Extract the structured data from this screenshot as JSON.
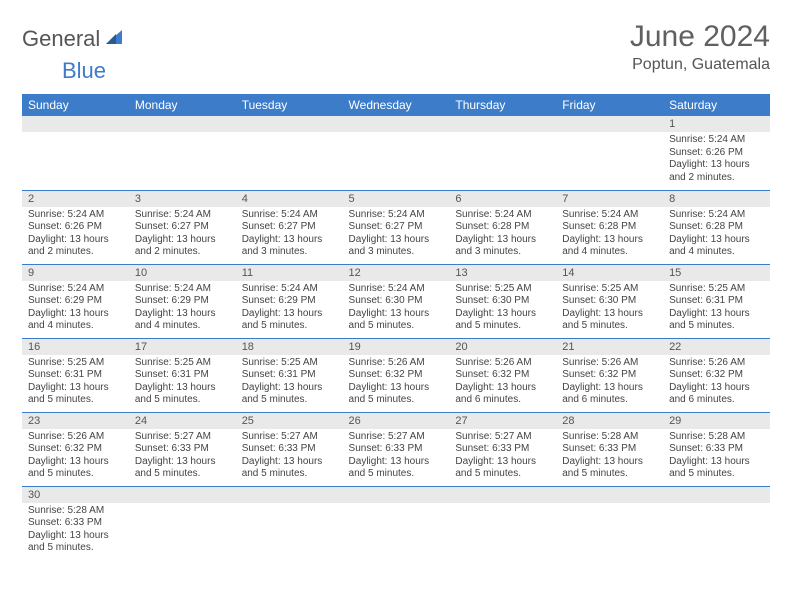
{
  "brand": {
    "name1": "General",
    "name2": "Blue"
  },
  "title": "June 2024",
  "location": "Poptun, Guatemala",
  "colors": {
    "header_bg": "#3d7cc9",
    "header_text": "#ffffff",
    "daynum_bg": "#e9e9e9",
    "border": "#3d7cc9",
    "text": "#444444"
  },
  "daysOfWeek": [
    "Sunday",
    "Monday",
    "Tuesday",
    "Wednesday",
    "Thursday",
    "Friday",
    "Saturday"
  ],
  "weeks": [
    [
      null,
      null,
      null,
      null,
      null,
      null,
      {
        "n": "1",
        "sr": "Sunrise: 5:24 AM",
        "ss": "Sunset: 6:26 PM",
        "dl": "Daylight: 13 hours and 2 minutes."
      }
    ],
    [
      {
        "n": "2",
        "sr": "Sunrise: 5:24 AM",
        "ss": "Sunset: 6:26 PM",
        "dl": "Daylight: 13 hours and 2 minutes."
      },
      {
        "n": "3",
        "sr": "Sunrise: 5:24 AM",
        "ss": "Sunset: 6:27 PM",
        "dl": "Daylight: 13 hours and 2 minutes."
      },
      {
        "n": "4",
        "sr": "Sunrise: 5:24 AM",
        "ss": "Sunset: 6:27 PM",
        "dl": "Daylight: 13 hours and 3 minutes."
      },
      {
        "n": "5",
        "sr": "Sunrise: 5:24 AM",
        "ss": "Sunset: 6:27 PM",
        "dl": "Daylight: 13 hours and 3 minutes."
      },
      {
        "n": "6",
        "sr": "Sunrise: 5:24 AM",
        "ss": "Sunset: 6:28 PM",
        "dl": "Daylight: 13 hours and 3 minutes."
      },
      {
        "n": "7",
        "sr": "Sunrise: 5:24 AM",
        "ss": "Sunset: 6:28 PM",
        "dl": "Daylight: 13 hours and 4 minutes."
      },
      {
        "n": "8",
        "sr": "Sunrise: 5:24 AM",
        "ss": "Sunset: 6:28 PM",
        "dl": "Daylight: 13 hours and 4 minutes."
      }
    ],
    [
      {
        "n": "9",
        "sr": "Sunrise: 5:24 AM",
        "ss": "Sunset: 6:29 PM",
        "dl": "Daylight: 13 hours and 4 minutes."
      },
      {
        "n": "10",
        "sr": "Sunrise: 5:24 AM",
        "ss": "Sunset: 6:29 PM",
        "dl": "Daylight: 13 hours and 4 minutes."
      },
      {
        "n": "11",
        "sr": "Sunrise: 5:24 AM",
        "ss": "Sunset: 6:29 PM",
        "dl": "Daylight: 13 hours and 5 minutes."
      },
      {
        "n": "12",
        "sr": "Sunrise: 5:24 AM",
        "ss": "Sunset: 6:30 PM",
        "dl": "Daylight: 13 hours and 5 minutes."
      },
      {
        "n": "13",
        "sr": "Sunrise: 5:25 AM",
        "ss": "Sunset: 6:30 PM",
        "dl": "Daylight: 13 hours and 5 minutes."
      },
      {
        "n": "14",
        "sr": "Sunrise: 5:25 AM",
        "ss": "Sunset: 6:30 PM",
        "dl": "Daylight: 13 hours and 5 minutes."
      },
      {
        "n": "15",
        "sr": "Sunrise: 5:25 AM",
        "ss": "Sunset: 6:31 PM",
        "dl": "Daylight: 13 hours and 5 minutes."
      }
    ],
    [
      {
        "n": "16",
        "sr": "Sunrise: 5:25 AM",
        "ss": "Sunset: 6:31 PM",
        "dl": "Daylight: 13 hours and 5 minutes."
      },
      {
        "n": "17",
        "sr": "Sunrise: 5:25 AM",
        "ss": "Sunset: 6:31 PM",
        "dl": "Daylight: 13 hours and 5 minutes."
      },
      {
        "n": "18",
        "sr": "Sunrise: 5:25 AM",
        "ss": "Sunset: 6:31 PM",
        "dl": "Daylight: 13 hours and 5 minutes."
      },
      {
        "n": "19",
        "sr": "Sunrise: 5:26 AM",
        "ss": "Sunset: 6:32 PM",
        "dl": "Daylight: 13 hours and 5 minutes."
      },
      {
        "n": "20",
        "sr": "Sunrise: 5:26 AM",
        "ss": "Sunset: 6:32 PM",
        "dl": "Daylight: 13 hours and 6 minutes."
      },
      {
        "n": "21",
        "sr": "Sunrise: 5:26 AM",
        "ss": "Sunset: 6:32 PM",
        "dl": "Daylight: 13 hours and 6 minutes."
      },
      {
        "n": "22",
        "sr": "Sunrise: 5:26 AM",
        "ss": "Sunset: 6:32 PM",
        "dl": "Daylight: 13 hours and 6 minutes."
      }
    ],
    [
      {
        "n": "23",
        "sr": "Sunrise: 5:26 AM",
        "ss": "Sunset: 6:32 PM",
        "dl": "Daylight: 13 hours and 5 minutes."
      },
      {
        "n": "24",
        "sr": "Sunrise: 5:27 AM",
        "ss": "Sunset: 6:33 PM",
        "dl": "Daylight: 13 hours and 5 minutes."
      },
      {
        "n": "25",
        "sr": "Sunrise: 5:27 AM",
        "ss": "Sunset: 6:33 PM",
        "dl": "Daylight: 13 hours and 5 minutes."
      },
      {
        "n": "26",
        "sr": "Sunrise: 5:27 AM",
        "ss": "Sunset: 6:33 PM",
        "dl": "Daylight: 13 hours and 5 minutes."
      },
      {
        "n": "27",
        "sr": "Sunrise: 5:27 AM",
        "ss": "Sunset: 6:33 PM",
        "dl": "Daylight: 13 hours and 5 minutes."
      },
      {
        "n": "28",
        "sr": "Sunrise: 5:28 AM",
        "ss": "Sunset: 6:33 PM",
        "dl": "Daylight: 13 hours and 5 minutes."
      },
      {
        "n": "29",
        "sr": "Sunrise: 5:28 AM",
        "ss": "Sunset: 6:33 PM",
        "dl": "Daylight: 13 hours and 5 minutes."
      }
    ],
    [
      {
        "n": "30",
        "sr": "Sunrise: 5:28 AM",
        "ss": "Sunset: 6:33 PM",
        "dl": "Daylight: 13 hours and 5 minutes."
      },
      null,
      null,
      null,
      null,
      null,
      null
    ]
  ]
}
